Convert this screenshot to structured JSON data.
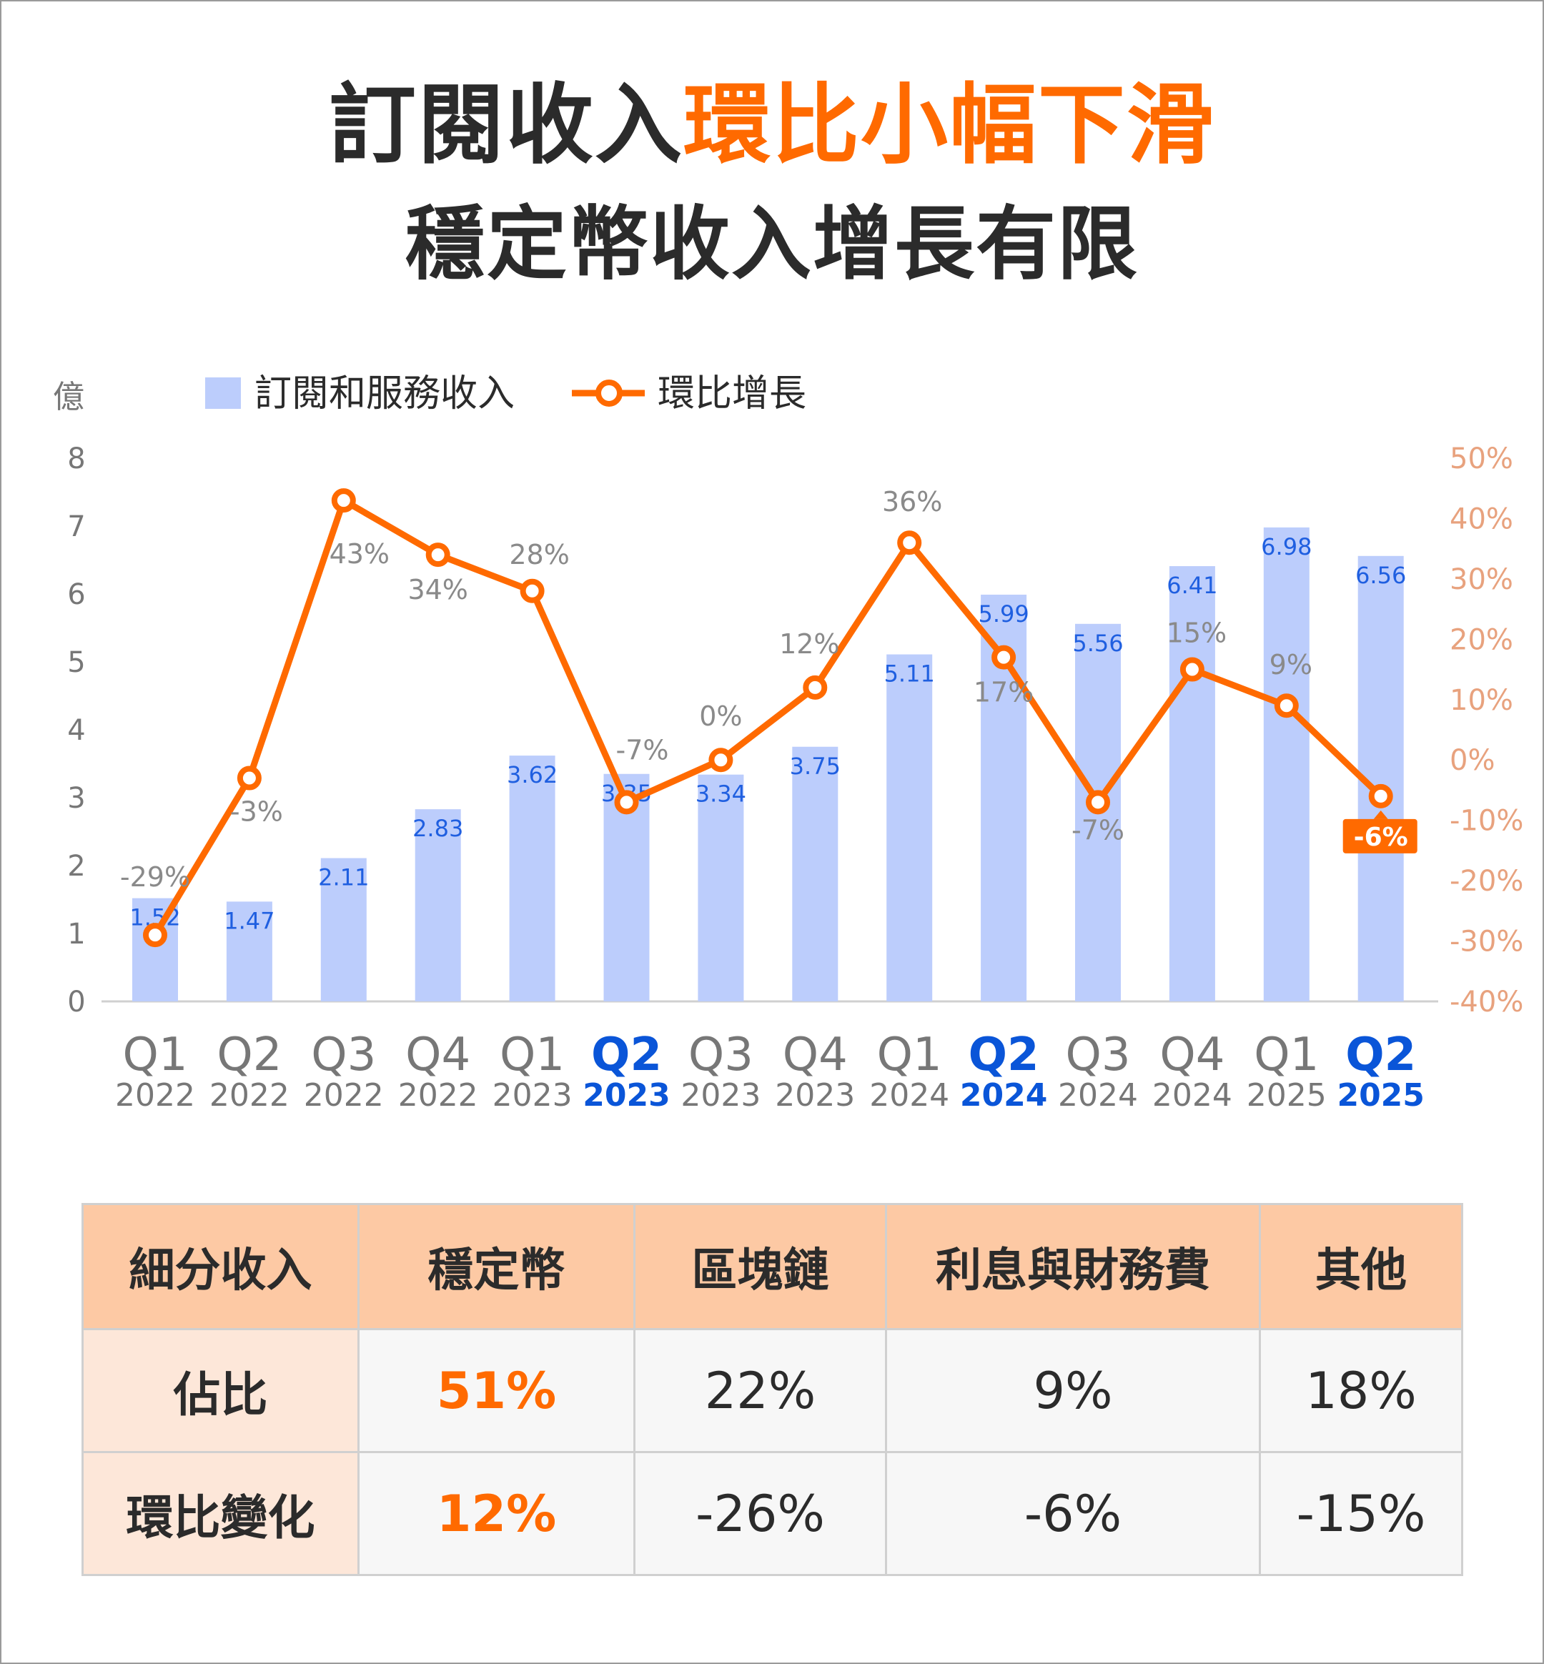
{
  "title": {
    "line1_dark": "訂閱收入",
    "line1_highlight": "環比小幅下滑",
    "line2": "穩定幣收入增長有限"
  },
  "colors": {
    "bar": "#bccdfc",
    "bar_label": "#1f5fe0",
    "line": "#ff6a00",
    "highlight_axis": "#0a55d8",
    "right_axis": "#e8a27e",
    "title_highlight": "#ff6a00"
  },
  "chart_data": {
    "type": "bar+line",
    "unit_label": "億",
    "legend": [
      {
        "name": "訂閱和服務收入",
        "kind": "bar"
      },
      {
        "name": "環比增長",
        "kind": "line"
      }
    ],
    "legend_placement": "top-left",
    "categories": [
      {
        "q": "Q1",
        "y": "2022"
      },
      {
        "q": "Q2",
        "y": "2022"
      },
      {
        "q": "Q3",
        "y": "2022"
      },
      {
        "q": "Q4",
        "y": "2022"
      },
      {
        "q": "Q1",
        "y": "2023"
      },
      {
        "q": "Q2",
        "y": "2023",
        "highlight": true
      },
      {
        "q": "Q3",
        "y": "2023"
      },
      {
        "q": "Q4",
        "y": "2023"
      },
      {
        "q": "Q1",
        "y": "2024"
      },
      {
        "q": "Q2",
        "y": "2024",
        "highlight": true
      },
      {
        "q": "Q3",
        "y": "2024"
      },
      {
        "q": "Q4",
        "y": "2024"
      },
      {
        "q": "Q1",
        "y": "2025"
      },
      {
        "q": "Q2",
        "y": "2025",
        "highlight": true
      }
    ],
    "series": [
      {
        "name": "訂閱和服務收入",
        "type": "bar",
        "axis": "left",
        "values": [
          1.52,
          1.47,
          2.11,
          2.83,
          3.62,
          3.35,
          3.34,
          3.75,
          5.11,
          5.99,
          5.56,
          6.41,
          6.98,
          6.56
        ],
        "labels": [
          "1.52",
          "1.47",
          "2.11",
          "2.83",
          "3.62",
          "3.35",
          "3.34",
          "3.75",
          "5.11",
          "5.99",
          "5.56",
          "6.41",
          "6.98",
          "6.56"
        ]
      },
      {
        "name": "環比增長",
        "type": "line",
        "axis": "right",
        "values": [
          -29,
          -3,
          43,
          34,
          28,
          -7,
          0,
          12,
          36,
          17,
          -7,
          15,
          9,
          -6
        ],
        "labels": [
          "-29%",
          "-3%",
          "43%",
          "34%",
          "28%",
          "-7%",
          "0%",
          "12%",
          "36%",
          "17%",
          "-7%",
          "15%",
          "9%",
          "-6%"
        ],
        "highlight_last": true
      }
    ],
    "y_left": {
      "range": [
        0,
        8
      ],
      "ticks": [
        "0",
        "1",
        "2",
        "3",
        "4",
        "5",
        "6",
        "7",
        "8"
      ]
    },
    "y_right": {
      "range": [
        -40,
        50
      ],
      "ticks": [
        "-40%",
        "-30%",
        "-20%",
        "-10%",
        "0%",
        "10%",
        "20%",
        "30%",
        "40%",
        "50%"
      ]
    },
    "grid": false
  },
  "table": {
    "headers": [
      "細分收入",
      "穩定幣",
      "區塊鏈",
      "利息與財務費",
      "其他"
    ],
    "rows": [
      {
        "label": "佔比",
        "values": [
          "51%",
          "22%",
          "9%",
          "18%"
        ]
      },
      {
        "label": "環比變化",
        "values": [
          "12%",
          "-26%",
          "-6%",
          "-15%"
        ]
      }
    ]
  }
}
